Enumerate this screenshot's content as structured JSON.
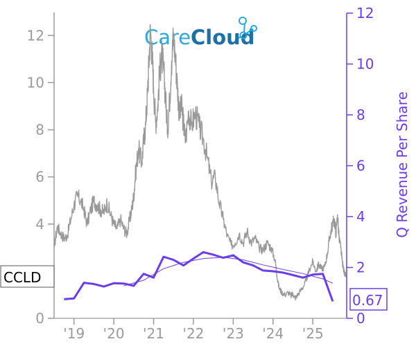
{
  "ticker": "CCLD",
  "logo": {
    "text_a": "Care",
    "text_b": "Cloud"
  },
  "colors": {
    "price": "#999999",
    "revenue": "#6a3de8",
    "trend": "#6a3de8",
    "axis_left": "#9a9a9a"
  },
  "chart_data": {
    "type": "line",
    "left_axis": {
      "ylim": [
        0,
        13.3
      ],
      "ticks": [
        0,
        2,
        4,
        6,
        8,
        10,
        12
      ],
      "tick_labels": [
        "0",
        "",
        "4",
        "6",
        "8",
        "10",
        "12"
      ]
    },
    "right_axis": {
      "label": "Q Revenue Per Share",
      "ylim": [
        0,
        12
      ],
      "ticks": [
        0,
        2,
        4,
        6,
        8,
        10,
        12
      ],
      "tick_labels": [
        "0",
        "2",
        "4",
        "6",
        "8",
        "10",
        "12"
      ]
    },
    "x_axis": {
      "xlim": [
        2018.0,
        2025.35
      ],
      "ticks": [
        2018.5,
        2019.5,
        2020.5,
        2021.5,
        2022.5,
        2023.5,
        2024.5
      ],
      "tick_labels": [
        "'19",
        "'20",
        "'21",
        "'22",
        "'23",
        "'24",
        "'25"
      ]
    },
    "price_series": {
      "axis": "left",
      "points": [
        [
          2018.0,
          3.0
        ],
        [
          2018.08,
          3.9
        ],
        [
          2018.17,
          3.6
        ],
        [
          2018.25,
          3.4
        ],
        [
          2018.33,
          3.5
        ],
        [
          2018.42,
          4.2
        ],
        [
          2018.5,
          4.8
        ],
        [
          2018.58,
          5.2
        ],
        [
          2018.67,
          5.0
        ],
        [
          2018.75,
          4.6
        ],
        [
          2018.83,
          4.0
        ],
        [
          2018.92,
          4.6
        ],
        [
          2019.0,
          5.0
        ],
        [
          2019.08,
          4.8
        ],
        [
          2019.17,
          4.6
        ],
        [
          2019.25,
          4.5
        ],
        [
          2019.33,
          4.9
        ],
        [
          2019.42,
          4.4
        ],
        [
          2019.5,
          4.0
        ],
        [
          2019.58,
          3.8
        ],
        [
          2019.67,
          4.2
        ],
        [
          2019.75,
          3.8
        ],
        [
          2019.83,
          3.6
        ],
        [
          2019.9,
          4.2
        ],
        [
          2019.95,
          4.6
        ],
        [
          2020.0,
          5.2
        ],
        [
          2020.05,
          6.2
        ],
        [
          2020.12,
          7.2
        ],
        [
          2020.2,
          6.6
        ],
        [
          2020.25,
          7.5
        ],
        [
          2020.3,
          8.2
        ],
        [
          2020.35,
          9.6
        ],
        [
          2020.38,
          10.8
        ],
        [
          2020.42,
          12.3
        ],
        [
          2020.47,
          11.0
        ],
        [
          2020.5,
          9.8
        ],
        [
          2020.55,
          8.3
        ],
        [
          2020.6,
          8.9
        ],
        [
          2020.65,
          10.4
        ],
        [
          2020.7,
          11.2
        ],
        [
          2020.75,
          10.6
        ],
        [
          2020.8,
          9.4
        ],
        [
          2020.85,
          8.0
        ],
        [
          2020.9,
          9.2
        ],
        [
          2020.95,
          10.9
        ],
        [
          2021.0,
          12.0
        ],
        [
          2021.05,
          11.0
        ],
        [
          2021.1,
          9.8
        ],
        [
          2021.15,
          8.6
        ],
        [
          2021.2,
          9.0
        ],
        [
          2021.25,
          8.3
        ],
        [
          2021.3,
          7.5
        ],
        [
          2021.38,
          8.8
        ],
        [
          2021.45,
          8.2
        ],
        [
          2021.55,
          8.7
        ],
        [
          2021.65,
          8.1
        ],
        [
          2021.75,
          7.6
        ],
        [
          2021.85,
          6.8
        ],
        [
          2021.95,
          5.8
        ],
        [
          2022.05,
          6.0
        ],
        [
          2022.15,
          4.9
        ],
        [
          2022.25,
          4.2
        ],
        [
          2022.35,
          3.5
        ],
        [
          2022.45,
          3.1
        ],
        [
          2022.55,
          3.2
        ],
        [
          2022.65,
          3.6
        ],
        [
          2022.75,
          3.2
        ],
        [
          2022.85,
          3.7
        ],
        [
          2022.95,
          3.2
        ],
        [
          2023.05,
          3.4
        ],
        [
          2023.15,
          3.0
        ],
        [
          2023.25,
          2.9
        ],
        [
          2023.35,
          3.2
        ],
        [
          2023.45,
          3.0
        ],
        [
          2023.55,
          2.5
        ],
        [
          2023.6,
          1.8
        ],
        [
          2023.65,
          1.3
        ],
        [
          2023.72,
          1.1
        ],
        [
          2023.8,
          1.0
        ],
        [
          2023.88,
          1.1
        ],
        [
          2023.95,
          0.95
        ],
        [
          2024.0,
          1.05
        ],
        [
          2024.05,
          0.85
        ],
        [
          2024.1,
          0.95
        ],
        [
          2024.2,
          1.2
        ],
        [
          2024.28,
          1.4
        ],
        [
          2024.35,
          1.7
        ],
        [
          2024.42,
          2.1
        ],
        [
          2024.5,
          2.4
        ],
        [
          2024.58,
          2.0
        ],
        [
          2024.65,
          2.3
        ],
        [
          2024.72,
          2.1
        ],
        [
          2024.8,
          2.2
        ],
        [
          2024.87,
          2.8
        ],
        [
          2024.93,
          3.5
        ],
        [
          2024.98,
          3.9
        ],
        [
          2025.04,
          4.2
        ],
        [
          2025.08,
          3.6
        ],
        [
          2025.12,
          4.4
        ],
        [
          2025.16,
          3.4
        ],
        [
          2025.2,
          3.0
        ],
        [
          2025.24,
          2.4
        ],
        [
          2025.28,
          2.0
        ],
        [
          2025.33,
          1.8
        ]
      ]
    },
    "revenue_series": {
      "axis": "right",
      "points": [
        [
          2018.25,
          0.75
        ],
        [
          2018.5,
          0.78
        ],
        [
          2018.75,
          1.4
        ],
        [
          2019.0,
          1.35
        ],
        [
          2019.25,
          1.25
        ],
        [
          2019.5,
          1.38
        ],
        [
          2019.75,
          1.37
        ],
        [
          2020.0,
          1.28
        ],
        [
          2020.25,
          1.75
        ],
        [
          2020.5,
          1.6
        ],
        [
          2020.75,
          2.42
        ],
        [
          2021.0,
          2.3
        ],
        [
          2021.25,
          2.08
        ],
        [
          2021.5,
          2.35
        ],
        [
          2021.75,
          2.6
        ],
        [
          2022.0,
          2.5
        ],
        [
          2022.25,
          2.38
        ],
        [
          2022.5,
          2.48
        ],
        [
          2022.75,
          2.2
        ],
        [
          2023.0,
          2.08
        ],
        [
          2023.25,
          1.88
        ],
        [
          2023.5,
          1.85
        ],
        [
          2023.75,
          1.8
        ],
        [
          2024.0,
          1.7
        ],
        [
          2024.25,
          1.6
        ],
        [
          2024.5,
          1.72
        ],
        [
          2024.75,
          1.75
        ],
        [
          2025.0,
          0.67
        ]
      ]
    },
    "trend_series": {
      "axis": "right",
      "points": [
        [
          2019.75,
          1.28
        ],
        [
          2020.25,
          1.5
        ],
        [
          2020.75,
          1.95
        ],
        [
          2021.25,
          2.2
        ],
        [
          2021.75,
          2.35
        ],
        [
          2022.25,
          2.4
        ],
        [
          2022.75,
          2.3
        ],
        [
          2023.25,
          2.1
        ],
        [
          2023.75,
          1.92
        ],
        [
          2024.25,
          1.76
        ],
        [
          2024.75,
          1.55
        ],
        [
          2025.0,
          1.38
        ]
      ]
    },
    "last_value_label": "0.67"
  }
}
